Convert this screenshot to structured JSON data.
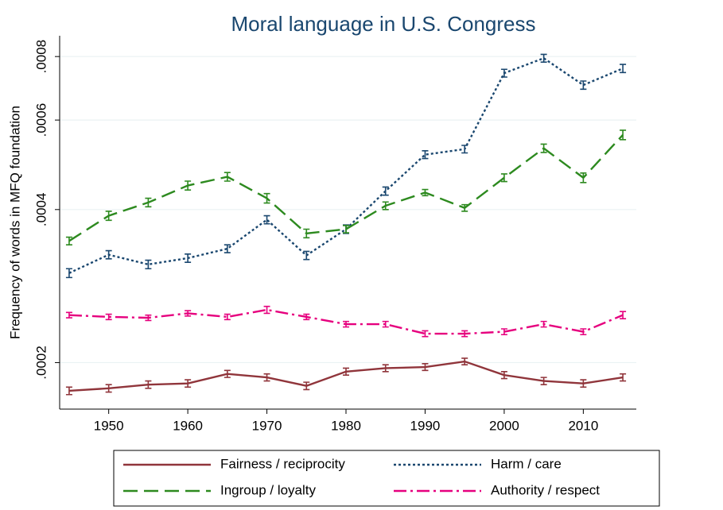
{
  "chart_data": {
    "type": "line",
    "title": "Moral language in U.S. Congress",
    "y_label": "Frequency of words in MFQ foundation",
    "x": [
      1945,
      1950,
      1955,
      1960,
      1965,
      1970,
      1975,
      1980,
      1985,
      1990,
      1995,
      2000,
      2005,
      2010,
      2015
    ],
    "xlim": [
      1943.8,
      2016.7
    ],
    "xticks": [
      1950,
      1960,
      1970,
      1980,
      1990,
      2000,
      2010
    ],
    "ylim": [
      0.000162,
      0.000879
    ],
    "yticks": [
      {
        "value": 0.0002,
        "label": ".0002"
      },
      {
        "value": 0.0004,
        "label": ".0004"
      },
      {
        "value": 0.0006,
        "label": ".0006"
      },
      {
        "value": 0.0008,
        "label": ".0008"
      }
    ],
    "log_y": true,
    "grid": true,
    "legend": "bottom",
    "series": [
      {
        "name": "Fairness / reciprocity",
        "color": "#90353b",
        "dash": "solid",
        "values": [
          0.000176,
          0.000178,
          0.000181,
          0.000182,
          0.00019,
          0.000187,
          0.00018,
          0.000192,
          0.000195,
          0.000196,
          0.000201,
          0.000189,
          0.000184,
          0.000182,
          0.000187
        ],
        "errors": [
          3e-06,
          3e-06,
          3e-06,
          3e-06,
          3e-06,
          3e-06,
          3e-06,
          3e-06,
          3e-06,
          3e-06,
          3e-06,
          3e-06,
          3e-06,
          3e-06,
          3e-06
        ]
      },
      {
        "name": "Harm / care",
        "color": "#1a476f",
        "dash": "dot",
        "values": [
          0.0003,
          0.000326,
          0.000312,
          0.000321,
          0.000335,
          0.000382,
          0.000325,
          0.000366,
          0.000435,
          0.000513,
          0.000526,
          0.000742,
          0.000794,
          0.000703,
          0.000758
        ],
        "errors": [
          6e-06,
          6e-06,
          6e-06,
          6e-06,
          6e-06,
          7e-06,
          6e-06,
          7e-06,
          8e-06,
          9e-06,
          9e-06,
          1.3e-05,
          1.4e-05,
          1.3e-05,
          1.4e-05
        ]
      },
      {
        "name": "Ingroup / loyalty",
        "color": "#2d8a1f",
        "dash": "dash",
        "values": [
          0.000347,
          0.000389,
          0.000413,
          0.000446,
          0.000464,
          0.000421,
          0.000359,
          0.000366,
          0.000407,
          0.000432,
          0.000403,
          0.000462,
          0.000528,
          0.000462,
          0.000561
        ],
        "errors": [
          6e-06,
          8e-06,
          8e-06,
          9e-06,
          9e-06,
          9e-06,
          7e-06,
          6e-06,
          7e-06,
          6e-06,
          6e-06,
          8e-06,
          1e-05,
          1e-05,
          1.2e-05
        ]
      },
      {
        "name": "Authority / respect",
        "color": "#e6007e",
        "dash": "dashdot",
        "values": [
          0.000248,
          0.000246,
          0.000245,
          0.00025,
          0.000246,
          0.000254,
          0.000246,
          0.000238,
          0.000238,
          0.000228,
          0.000228,
          0.00023,
          0.000238,
          0.00023,
          0.000248
        ],
        "errors": [
          3e-06,
          3e-06,
          3e-06,
          3e-06,
          3e-06,
          4e-06,
          3e-06,
          3e-06,
          3e-06,
          3e-06,
          3e-06,
          3e-06,
          3e-06,
          3e-06,
          4e-06
        ]
      }
    ]
  }
}
